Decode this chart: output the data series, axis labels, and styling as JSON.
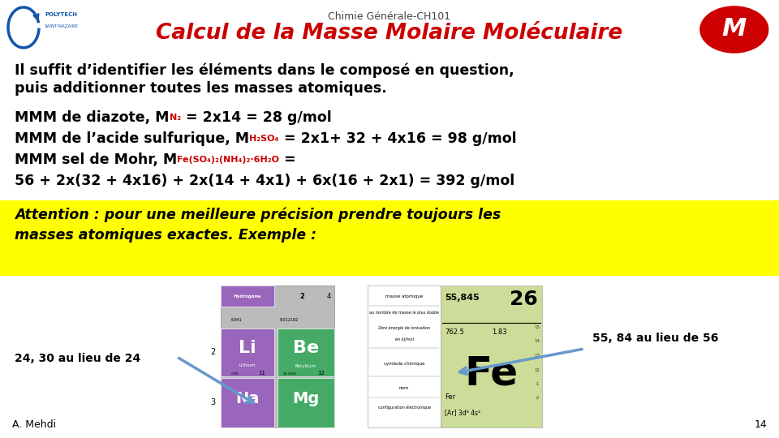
{
  "title_top": "Chimie Générale-CH101",
  "title_main": "Calcul de la Masse Molaire Moléculaire",
  "subtitle1": "Il suffit d’identifier les éléments dans le composé en question,",
  "subtitle2": "puis additionner toutes les masses atomiques.",
  "line1_a": "MMM de diazote, M",
  "line1_sub": "N₂",
  "line1_b": " = 2x14 = 28 g/mol",
  "line2_a": "MMM de l’acide sulfurique, M",
  "line2_sub": "H₂SO₄",
  "line2_b": " = 2x1+ 32 + 4x16 = 98 g/mol",
  "line3_a": "MMM sel de Mohr, M",
  "line3_sub": "Fe(SO₄)₂(NH₄)₂·6H₂O",
  "line3_b": " =",
  "line4": "56 + 2x(32 + 4x16) + 2x(14 + 4x1) + 6x(16 + 2x1) = 392 g/mol",
  "attention1": "Attention : pour une meilleure précision prendre toujours les",
  "attention2": "masses atomiques exactes. Exemple :",
  "note_left": "24, 30 au lieu de 24",
  "note_right": "55, 84 au lieu de 56",
  "author": "A. Mehdi",
  "page": "14",
  "bg_color": "#ffffff",
  "title_color": "#cc0000",
  "black_color": "#000000",
  "red_color": "#cc0000",
  "attention_bg": "#ffff00",
  "attention_color": "#000000",
  "header_color": "#444444",
  "arrow_color": "#6699cc"
}
